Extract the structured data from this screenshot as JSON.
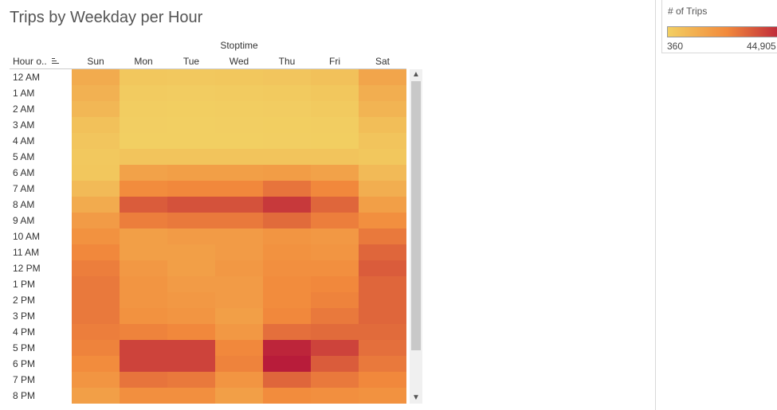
{
  "title": "Trips by Weekday per Hour",
  "column_header": "Stoptime",
  "row_header": "Hour o..",
  "legend": {
    "title": "# of Trips",
    "min_label": "360",
    "max_label": "44,905",
    "color_low": "#F2CF62",
    "color_mid": "#F28A3C",
    "color_high": "#B81C3A"
  },
  "chart_data": {
    "type": "heatmap",
    "title": "Trips by Weekday per Hour",
    "x_header": "Stoptime",
    "y_header": "Hour o..",
    "x": [
      "Sun",
      "Mon",
      "Tue",
      "Wed",
      "Thu",
      "Fri",
      "Sat"
    ],
    "y": [
      "12 AM",
      "1 AM",
      "2 AM",
      "3 AM",
      "4 AM",
      "5 AM",
      "6 AM",
      "7 AM",
      "8 AM",
      "9 AM",
      "10 AM",
      "11 AM",
      "12 PM",
      "1 PM",
      "2 PM",
      "3 PM",
      "4 PM",
      "5 PM",
      "6 PM",
      "7 PM",
      "8 PM"
    ],
    "values": [
      [
        12000,
        3000,
        2500,
        3000,
        3500,
        5000,
        14000
      ],
      [
        10000,
        1500,
        1200,
        1500,
        2000,
        3000,
        11000
      ],
      [
        8000,
        1000,
        800,
        1000,
        1200,
        2000,
        9000
      ],
      [
        5000,
        600,
        500,
        600,
        700,
        1000,
        6000
      ],
      [
        3500,
        500,
        400,
        500,
        600,
        800,
        4000
      ],
      [
        2500,
        4000,
        4000,
        4000,
        4000,
        4000,
        3000
      ],
      [
        3000,
        15000,
        16000,
        16000,
        16500,
        15000,
        7000
      ],
      [
        7000,
        22000,
        23000,
        23000,
        27000,
        23000,
        11000
      ],
      [
        12000,
        32000,
        34000,
        34000,
        39000,
        30000,
        16000
      ],
      [
        17000,
        25000,
        26000,
        26000,
        29000,
        25000,
        21000
      ],
      [
        20000,
        16000,
        17000,
        17000,
        19000,
        18000,
        26000
      ],
      [
        23000,
        16000,
        16000,
        17000,
        20000,
        19000,
        30000
      ],
      [
        25000,
        18000,
        16000,
        18000,
        21000,
        21000,
        32000
      ],
      [
        26000,
        19000,
        17000,
        17000,
        22000,
        23000,
        30000
      ],
      [
        26000,
        19000,
        18000,
        17000,
        22000,
        24000,
        30000
      ],
      [
        26000,
        20000,
        19000,
        16000,
        23000,
        26000,
        30000
      ],
      [
        25000,
        24000,
        23000,
        18000,
        28000,
        29000,
        29000
      ],
      [
        24000,
        37000,
        37000,
        23000,
        43000,
        37000,
        28000
      ],
      [
        22000,
        37000,
        37000,
        24000,
        44905,
        32000,
        26000
      ],
      [
        19000,
        27000,
        26000,
        19000,
        30000,
        26000,
        23000
      ],
      [
        16000,
        21000,
        21000,
        16000,
        22000,
        21000,
        20000
      ]
    ],
    "value_range": [
      360,
      44905
    ]
  }
}
